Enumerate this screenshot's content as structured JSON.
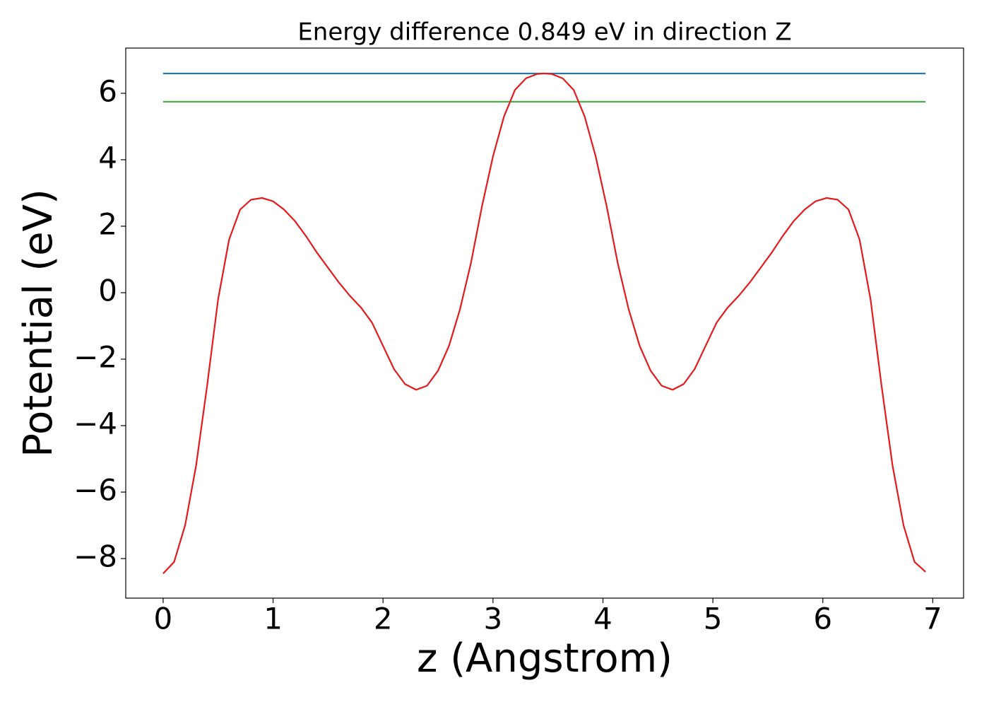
{
  "chart_data": {
    "type": "line",
    "title": "Energy difference 0.849 eV in direction Z",
    "xlabel": "z (Angstrom)",
    "ylabel": "Potential (eV)",
    "xlim": [
      -0.34,
      7.28
    ],
    "ylim": [
      -9.19,
      7.36
    ],
    "xticks": [
      0,
      1,
      2,
      3,
      4,
      5,
      6,
      7
    ],
    "yticks": [
      {
        "value": -8,
        "label": "−8"
      },
      {
        "value": -6,
        "label": "−6"
      },
      {
        "value": -4,
        "label": "−4"
      },
      {
        "value": -2,
        "label": "−2"
      },
      0,
      2,
      4,
      6
    ],
    "series": [
      {
        "color": "#e41a1c",
        "x": [
          0,
          0.1,
          0.2,
          0.3,
          0.4,
          0.5,
          0.6,
          0.7,
          0.8,
          0.9,
          1.0,
          1.1,
          1.2,
          1.3,
          1.4,
          1.5,
          1.6,
          1.7,
          1.8,
          1.9,
          2.0,
          2.1,
          2.2,
          2.3,
          2.4,
          2.5,
          2.6,
          2.7,
          2.8,
          2.9,
          3.0,
          3.1,
          3.2,
          3.3,
          3.4,
          3.467,
          3.534,
          3.634,
          3.734,
          3.834,
          3.934,
          4.034,
          4.134,
          4.234,
          4.334,
          4.434,
          4.534,
          4.634,
          4.734,
          4.834,
          4.934,
          5.034,
          5.134,
          5.234,
          5.334,
          5.434,
          5.534,
          5.634,
          5.734,
          5.834,
          5.934,
          6.034,
          6.134,
          6.234,
          6.334,
          6.434,
          6.534,
          6.634,
          6.734,
          6.834,
          6.934
        ],
        "values": [
          -8.45,
          -8.1,
          -7.0,
          -5.2,
          -2.8,
          -0.2,
          1.6,
          2.5,
          2.8,
          2.85,
          2.75,
          2.5,
          2.15,
          1.7,
          1.2,
          0.75,
          0.3,
          -0.1,
          -0.45,
          -0.9,
          -1.6,
          -2.3,
          -2.75,
          -2.92,
          -2.8,
          -2.35,
          -1.6,
          -0.5,
          0.9,
          2.6,
          4.1,
          5.3,
          6.1,
          6.45,
          6.58,
          6.595,
          6.58,
          6.45,
          6.1,
          5.3,
          4.1,
          2.6,
          0.9,
          -0.5,
          -1.6,
          -2.35,
          -2.8,
          -2.92,
          -2.75,
          -2.3,
          -1.6,
          -0.9,
          -0.45,
          -0.1,
          0.3,
          0.75,
          1.2,
          1.7,
          2.15,
          2.5,
          2.75,
          2.85,
          2.8,
          2.5,
          1.6,
          -0.2,
          -2.8,
          -5.2,
          -7.0,
          -8.1,
          -8.4
        ]
      },
      {
        "color": "#1f77b4",
        "x": [
          0,
          6.934
        ],
        "values": [
          6.595,
          6.595
        ]
      },
      {
        "color": "#4daf4a",
        "x": [
          0,
          6.934
        ],
        "values": [
          5.746,
          5.746
        ]
      }
    ]
  }
}
